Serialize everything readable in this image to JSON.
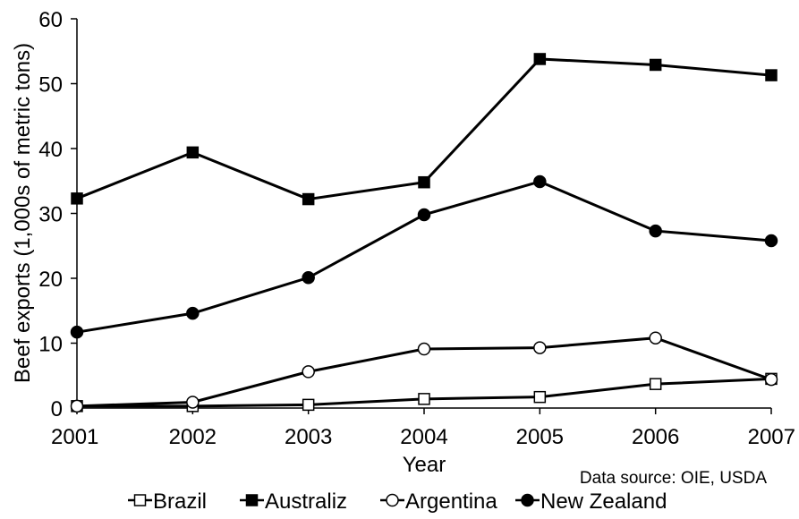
{
  "chart_data": {
    "type": "line",
    "title": "",
    "xlabel": "Year",
    "ylabel": "Beef exports (1,000s of metric tons)",
    "x": [
      "2001",
      "2002",
      "2003",
      "2004",
      "2005",
      "2006",
      "2007"
    ],
    "ylim": [
      0,
      60
    ],
    "yticks": [
      "0",
      "10",
      "20",
      "30",
      "40",
      "50",
      "60"
    ],
    "grid": false,
    "legend_position": "bottom",
    "note": "Data source: OIE, USDA",
    "series": [
      {
        "name": "Brazil",
        "marker": "square-open",
        "color": "#000000",
        "values": [
          0.3,
          0.3,
          0.5,
          1.4,
          1.7,
          3.7,
          4.5
        ]
      },
      {
        "name": "Australiz",
        "marker": "square-filled",
        "color": "#000000",
        "values": [
          32.3,
          39.4,
          32.2,
          34.8,
          53.8,
          52.9,
          51.3
        ]
      },
      {
        "name": "Argentina",
        "marker": "circle-open",
        "color": "#000000",
        "values": [
          0.3,
          0.9,
          5.6,
          9.1,
          9.3,
          10.8,
          4.4
        ]
      },
      {
        "name": "New Zealand",
        "marker": "circle-filled",
        "color": "#000000",
        "values": [
          11.7,
          14.6,
          20.1,
          29.8,
          34.9,
          27.3,
          25.8
        ]
      }
    ]
  }
}
